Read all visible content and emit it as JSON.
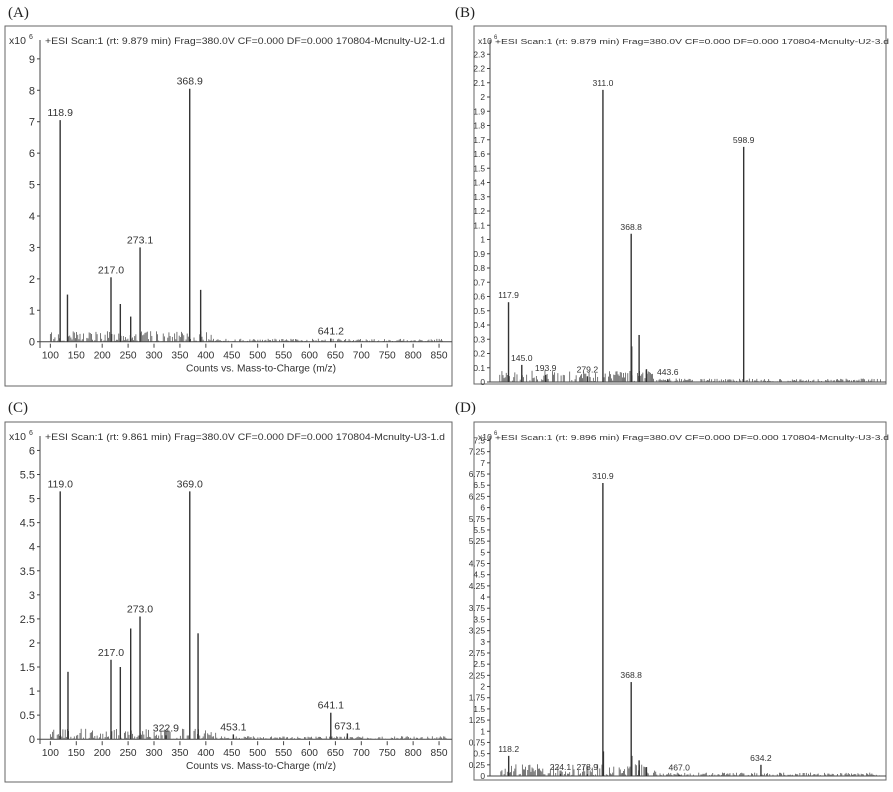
{
  "panels": [
    {
      "letter": "(A)",
      "title": "+ESI Scan:1 (rt: 9.879 min) Frag=380.0V CF=0.000 DF=0.000 170804-Mcnulty-U2-1.d",
      "exp_label": "x10",
      "exp_power": "6",
      "xlabel": "Counts vs. Mass-to-Charge (m/z)",
      "chart_data": {
        "type": "bar",
        "xlim": [
          80,
          875
        ],
        "ylim": [
          -0.2,
          9.6
        ],
        "xticks": [
          100,
          150,
          200,
          250,
          300,
          350,
          400,
          450,
          500,
          550,
          600,
          650,
          700,
          750,
          800,
          850
        ],
        "yticks": [
          0,
          1,
          2,
          3,
          4,
          5,
          6,
          7,
          8,
          9
        ],
        "peaks": [
          {
            "mz": 118.9,
            "intensity": 7.05,
            "label": "118.9"
          },
          {
            "mz": 133,
            "intensity": 1.5
          },
          {
            "mz": 217.0,
            "intensity": 2.05,
            "label": "217.0"
          },
          {
            "mz": 235,
            "intensity": 1.2
          },
          {
            "mz": 255,
            "intensity": 0.8
          },
          {
            "mz": 273.1,
            "intensity": 3.0,
            "label": "273.1"
          },
          {
            "mz": 368.9,
            "intensity": 8.05,
            "label": "368.9"
          },
          {
            "mz": 390,
            "intensity": 1.65
          },
          {
            "mz": 641.2,
            "intensity": 0.1,
            "label": "641.2"
          }
        ]
      }
    },
    {
      "letter": "(B)",
      "title": "+ESI Scan:1 (rt: 9.879 min) Frag=380.0V CF=0.000 DF=0.000 170804-Mcnulty-U2-3.d",
      "exp_label": "x10",
      "exp_power": "6",
      "xlabel": "",
      "chart_data": {
        "type": "bar",
        "xlim": [
          80,
          890
        ],
        "ylim": [
          0,
          2.4
        ],
        "xticks": [],
        "yticks": [
          0,
          0.1,
          0.2,
          0.3,
          0.4,
          0.5,
          0.6,
          0.7,
          0.8,
          0.9,
          1,
          1.1,
          1.2,
          1.3,
          1.4,
          1.5,
          1.6,
          1.7,
          1.8,
          1.9,
          2,
          2.1,
          2.2,
          2.3
        ],
        "peaks": [
          {
            "mz": 117.9,
            "intensity": 0.56,
            "label": "117.9"
          },
          {
            "mz": 145.0,
            "intensity": 0.12,
            "label": "145.0"
          },
          {
            "mz": 193.9,
            "intensity": 0.05,
            "label": "193.9"
          },
          {
            "mz": 279.2,
            "intensity": 0.04,
            "label": "279.2"
          },
          {
            "mz": 311.0,
            "intensity": 2.05,
            "label": "311.0"
          },
          {
            "mz": 368.8,
            "intensity": 1.04,
            "label": "368.8"
          },
          {
            "mz": 369.8,
            "intensity": 0.25
          },
          {
            "mz": 385,
            "intensity": 0.33
          },
          {
            "mz": 400,
            "intensity": 0.09
          },
          {
            "mz": 443.6,
            "intensity": 0.02,
            "label": "443.6"
          },
          {
            "mz": 598.9,
            "intensity": 1.65,
            "label": "598.9"
          }
        ]
      }
    },
    {
      "letter": "(C)",
      "title": "+ESI Scan:1 (rt: 9.861 min) Frag=380.0V CF=0.000 DF=0.000 170804-Mcnulty-U3-1.d",
      "exp_label": "x10",
      "exp_power": "6",
      "xlabel": "Counts vs. Mass-to-Charge (m/z)",
      "chart_data": {
        "type": "bar",
        "xlim": [
          80,
          875
        ],
        "ylim": [
          -0.1,
          6.3
        ],
        "xticks": [
          100,
          150,
          200,
          250,
          300,
          350,
          400,
          450,
          500,
          550,
          600,
          650,
          700,
          750,
          800,
          850
        ],
        "yticks": [
          0,
          0.5,
          1,
          1.5,
          2,
          2.5,
          3,
          3.5,
          4,
          4.5,
          5,
          5.5,
          6
        ],
        "peaks": [
          {
            "mz": 119.0,
            "intensity": 5.15,
            "label": "119.0"
          },
          {
            "mz": 134,
            "intensity": 1.4
          },
          {
            "mz": 217.0,
            "intensity": 1.65,
            "label": "217.0"
          },
          {
            "mz": 235,
            "intensity": 1.5
          },
          {
            "mz": 255,
            "intensity": 2.3
          },
          {
            "mz": 273.0,
            "intensity": 2.55,
            "label": "273.0"
          },
          {
            "mz": 322.9,
            "intensity": 0.08,
            "label": "322.9"
          },
          {
            "mz": 369.0,
            "intensity": 5.15,
            "label": "369.0"
          },
          {
            "mz": 385,
            "intensity": 2.2
          },
          {
            "mz": 453.1,
            "intensity": 0.1,
            "label": "453.1"
          },
          {
            "mz": 641.1,
            "intensity": 0.55,
            "label": "641.1"
          },
          {
            "mz": 673.1,
            "intensity": 0.12,
            "label": "673.1"
          }
        ]
      }
    },
    {
      "letter": "(D)",
      "title": "+ESI Scan:1 (rt: 9.896 min) Frag=380.0V CF=0.000 DF=0.000 170804-Mcnulty-U3-3.d",
      "exp_label": "x10",
      "exp_power": "6",
      "xlabel": "",
      "chart_data": {
        "type": "bar",
        "xlim": [
          80,
          890
        ],
        "ylim": [
          0,
          7.6
        ],
        "xticks": [],
        "yticks": [
          0,
          0.25,
          0.5,
          0.75,
          1,
          1.25,
          1.5,
          1.75,
          2,
          2.25,
          2.5,
          2.75,
          3,
          3.25,
          3.5,
          3.75,
          4,
          4.25,
          4.5,
          4.75,
          5,
          5.25,
          5.5,
          5.75,
          6,
          6.25,
          6.5,
          6.75,
          7,
          7.25,
          7.5
        ],
        "peaks": [
          {
            "mz": 118.2,
            "intensity": 0.45,
            "label": "118.2"
          },
          {
            "mz": 224.1,
            "intensity": 0.05,
            "label": "224.1"
          },
          {
            "mz": 278.9,
            "intensity": 0.04,
            "label": "278.9"
          },
          {
            "mz": 310.9,
            "intensity": 6.55,
            "label": "310.9"
          },
          {
            "mz": 312,
            "intensity": 0.55
          },
          {
            "mz": 368.8,
            "intensity": 2.1,
            "label": "368.8"
          },
          {
            "mz": 370,
            "intensity": 0.45
          },
          {
            "mz": 385,
            "intensity": 0.35
          },
          {
            "mz": 400,
            "intensity": 0.2
          },
          {
            "mz": 467.0,
            "intensity": 0.03,
            "label": "467.0"
          },
          {
            "mz": 634.2,
            "intensity": 0.25,
            "label": "634.2"
          }
        ]
      }
    }
  ]
}
